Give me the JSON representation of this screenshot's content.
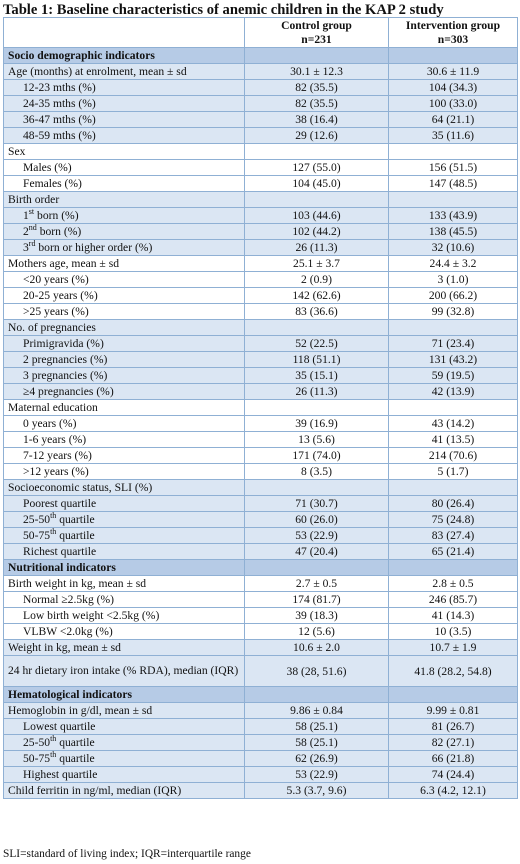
{
  "title": "Table 1: Baseline characteristics of anemic children in the KAP 2 study",
  "header": {
    "control_line1": "Control group",
    "control_line2": "n=231",
    "intervention_line1": "Intervention group",
    "intervention_line2": "n=303"
  },
  "rows": [
    {
      "kind": "section",
      "pre": "Socio demographic indicators",
      "sup": "",
      "post": "",
      "control": "",
      "intervention": ""
    },
    {
      "kind": "band",
      "pre": "Age (months) at enrolment, mean ± sd",
      "sup": "",
      "post": "",
      "control": "30.1 ± 12.3",
      "intervention": "30.6 ± 11.9"
    },
    {
      "kind": "band",
      "indent": true,
      "pre": "12-23 mths (%)",
      "sup": "",
      "post": "",
      "control": "82 (35.5)",
      "intervention": "104 (34.3)"
    },
    {
      "kind": "band",
      "indent": true,
      "pre": "24-35 mths (%)",
      "sup": "",
      "post": "",
      "control": "82 (35.5)",
      "intervention": "100 (33.0)"
    },
    {
      "kind": "band",
      "indent": true,
      "pre": "36-47 mths (%)",
      "sup": "",
      "post": "",
      "control": "38 (16.4)",
      "intervention": "64 (21.1)"
    },
    {
      "kind": "band",
      "indent": true,
      "pre": "48-59 mths (%)",
      "sup": "",
      "post": "",
      "control": "29 (12.6)",
      "intervention": "35 (11.6)"
    },
    {
      "kind": "plain",
      "pre": "Sex",
      "sup": "",
      "post": "",
      "control": "",
      "intervention": ""
    },
    {
      "kind": "plain",
      "indent": true,
      "pre": "Males (%)",
      "sup": "",
      "post": "",
      "control": "127 (55.0)",
      "intervention": "156 (51.5)"
    },
    {
      "kind": "plain",
      "indent": true,
      "pre": "Females (%)",
      "sup": "",
      "post": "",
      "control": "104 (45.0)",
      "intervention": "147 (48.5)"
    },
    {
      "kind": "band",
      "pre": "Birth order",
      "sup": "",
      "post": "",
      "control": "",
      "intervention": ""
    },
    {
      "kind": "band",
      "indent": true,
      "pre": "1",
      "sup": "st",
      "post": " born (%)",
      "control": "103 (44.6)",
      "intervention": "133 (43.9)"
    },
    {
      "kind": "band",
      "indent": true,
      "pre": "2",
      "sup": "nd",
      "post": " born (%)",
      "control": "102 (44.2)",
      "intervention": "138 (45.5)"
    },
    {
      "kind": "band",
      "indent": true,
      "pre": "3",
      "sup": "rd",
      "post": " born or higher order (%)",
      "control": "26 (11.3)",
      "intervention": "32 (10.6)"
    },
    {
      "kind": "plain",
      "pre": "Mothers age, mean ± sd",
      "sup": "",
      "post": "",
      "control": "25.1 ± 3.7",
      "intervention": "24.4 ± 3.2"
    },
    {
      "kind": "plain",
      "indent": true,
      "pre": "<20  years (%)",
      "sup": "",
      "post": "",
      "control": "2 (0.9)",
      "intervention": "3 (1.0)"
    },
    {
      "kind": "plain",
      "indent": true,
      "pre": "20-25 years (%)",
      "sup": "",
      "post": "",
      "control": "142 (62.6)",
      "intervention": "200 (66.2)"
    },
    {
      "kind": "plain",
      "indent": true,
      "pre": ">25 years (%)",
      "sup": "",
      "post": "",
      "control": "83 (36.6)",
      "intervention": "99 (32.8)"
    },
    {
      "kind": "band",
      "pre": "No. of pregnancies",
      "sup": "",
      "post": "",
      "control": "",
      "intervention": ""
    },
    {
      "kind": "band",
      "indent": true,
      "pre": "Primigravida (%)",
      "sup": "",
      "post": "",
      "control": "52 (22.5)",
      "intervention": "71 (23.4)"
    },
    {
      "kind": "band",
      "indent": true,
      "pre": "2 pregnancies (%)",
      "sup": "",
      "post": "",
      "control": "118 (51.1)",
      "intervention": "131 (43.2)"
    },
    {
      "kind": "band",
      "indent": true,
      "pre": "3 pregnancies (%)",
      "sup": "",
      "post": "",
      "control": "35 (15.1)",
      "intervention": "59 (19.5)"
    },
    {
      "kind": "band",
      "indent": true,
      "pre": "≥4 pregnancies (%)",
      "sup": "",
      "post": "",
      "control": "26 (11.3)",
      "intervention": "42 (13.9)"
    },
    {
      "kind": "plain",
      "pre": "Maternal education",
      "sup": "",
      "post": "",
      "control": "",
      "intervention": ""
    },
    {
      "kind": "plain",
      "indent": true,
      "pre": "0 years (%)",
      "sup": "",
      "post": "",
      "control": "39 (16.9)",
      "intervention": "43 (14.2)"
    },
    {
      "kind": "plain",
      "indent": true,
      "pre": "1-6 years (%)",
      "sup": "",
      "post": "",
      "control": "13 (5.6)",
      "intervention": "41 (13.5)"
    },
    {
      "kind": "plain",
      "indent": true,
      "pre": "7-12 years (%)",
      "sup": "",
      "post": "",
      "control": "171 (74.0)",
      "intervention": "214 (70.6)"
    },
    {
      "kind": "plain",
      "indent": true,
      "pre": ">12 years (%)",
      "sup": "",
      "post": "",
      "control": "8 (3.5)",
      "intervention": "5 (1.7)"
    },
    {
      "kind": "band",
      "pre": "Socioeconomic status, SLI (%)",
      "sup": "",
      "post": "",
      "control": "",
      "intervention": ""
    },
    {
      "kind": "band",
      "indent": true,
      "pre": "Poorest quartile",
      "sup": "",
      "post": "",
      "control": "71 (30.7)",
      "intervention": "80 (26.4)"
    },
    {
      "kind": "band",
      "indent": true,
      "pre": "25-50",
      "sup": "th",
      "post": " quartile",
      "control": "60 (26.0)",
      "intervention": "75 (24.8)"
    },
    {
      "kind": "band",
      "indent": true,
      "pre": "50-75",
      "sup": "th",
      "post": " quartile",
      "control": "53 (22.9)",
      "intervention": "83 (27.4)"
    },
    {
      "kind": "band",
      "indent": true,
      "pre": "Richest quartile",
      "sup": "",
      "post": "",
      "control": "47 (20.4)",
      "intervention": "65 (21.4)"
    },
    {
      "kind": "section",
      "pre": "Nutritional indicators",
      "sup": "",
      "post": "",
      "control": "",
      "intervention": ""
    },
    {
      "kind": "plain",
      "pre": "Birth weight in kg, mean ± sd",
      "sup": "",
      "post": "",
      "control": "2.7 ± 0.5",
      "intervention": "2.8 ± 0.5"
    },
    {
      "kind": "plain",
      "indent": true,
      "pre": "Normal ≥2.5kg (%)",
      "sup": "",
      "post": "",
      "control": "174 (81.7)",
      "intervention": "246 (85.7)"
    },
    {
      "kind": "plain",
      "indent": true,
      "pre": "Low birth weight <2.5kg (%)",
      "sup": "",
      "post": "",
      "control": "39 (18.3)",
      "intervention": "41 (14.3)"
    },
    {
      "kind": "plain",
      "indent": true,
      "pre": "VLBW <2.0kg (%)",
      "sup": "",
      "post": "",
      "control": "12 (5.6)",
      "intervention": "10 (3.5)"
    },
    {
      "kind": "band",
      "pre": "Weight in kg, mean ± sd",
      "sup": "",
      "post": "",
      "control": "10.6 ± 2.0",
      "intervention": "10.7 ± 1.9"
    },
    {
      "kind": "band",
      "tall": true,
      "pre": "24 hr dietary iron intake (% RDA), median (IQR)",
      "sup": "",
      "post": "",
      "control": "38 (28, 51.6)",
      "intervention": "41.8 (28.2, 54.8)"
    },
    {
      "kind": "section",
      "pre": "Hematological indicators",
      "sup": "",
      "post": "",
      "control": "",
      "intervention": ""
    },
    {
      "kind": "band",
      "pre": "Hemoglobin in g/dl,  mean ± sd",
      "sup": "",
      "post": "",
      "control": "9.86 ± 0.84",
      "intervention": "9.99 ± 0.81"
    },
    {
      "kind": "band",
      "indent": true,
      "pre": "Lowest quartile",
      "sup": "",
      "post": "",
      "control": "58 (25.1)",
      "intervention": "81 (26.7)"
    },
    {
      "kind": "band",
      "indent": true,
      "pre": "25-50",
      "sup": "th",
      "post": " quartile",
      "control": "58 (25.1)",
      "intervention": "82 (27.1)"
    },
    {
      "kind": "band",
      "indent": true,
      "pre": "50-75",
      "sup": "th",
      "post": " quartile",
      "control": "62 (26.9)",
      "intervention": "66 (21.8)"
    },
    {
      "kind": "band",
      "indent": true,
      "pre": "Highest quartile",
      "sup": "",
      "post": "",
      "control": "53 (22.9)",
      "intervention": "74 (24.4)"
    },
    {
      "kind": "band",
      "pre": "Child ferritin in ng/ml, median (IQR)",
      "sup": "",
      "post": "",
      "control": "5.3 (3.7, 9.6)",
      "intervention": "6.3 (4.2, 12.1)"
    }
  ],
  "footnote": "SLI=standard of living index; IQR=interquartile range",
  "colors": {
    "section": "#b6cbe6",
    "band": "#dbe6f3",
    "plain": "#ffffff",
    "border": "#8fb0d4"
  }
}
